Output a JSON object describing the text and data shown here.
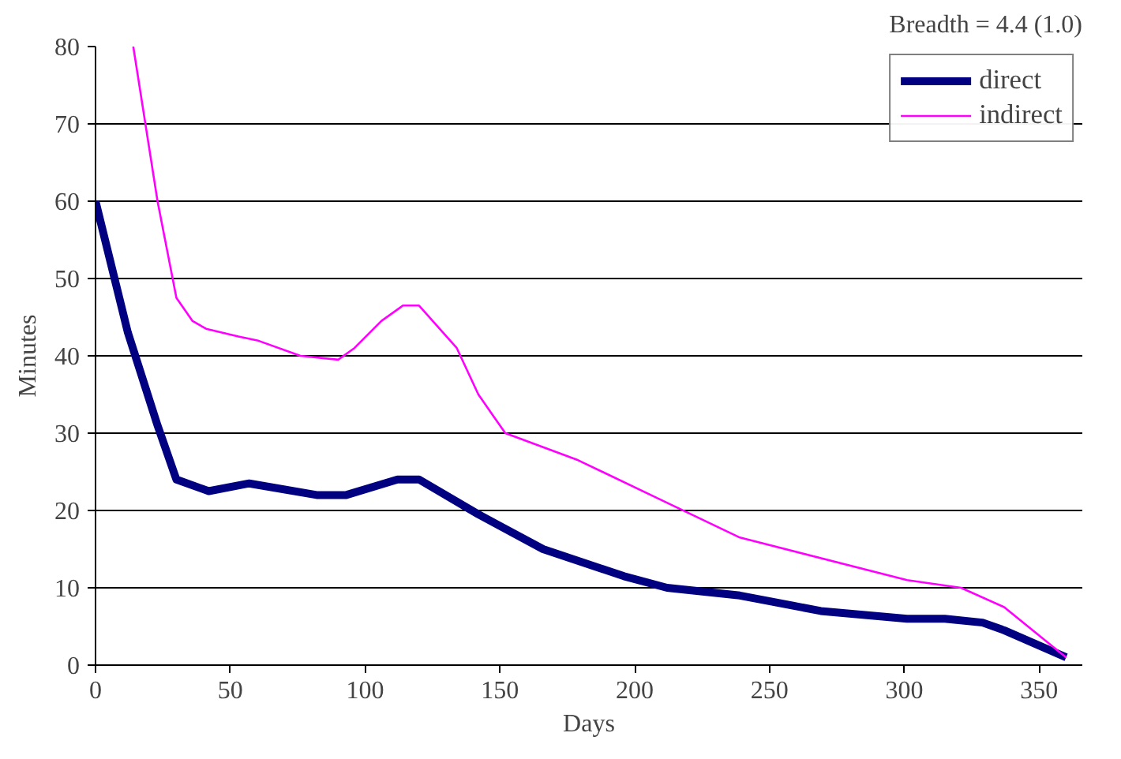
{
  "chart_data": {
    "type": "line",
    "xlabel": "Days",
    "ylabel": "Minutes",
    "annotations": [
      "Breadth = 4.4 (1.0)"
    ],
    "xlim": [
      0,
      366
    ],
    "ylim": [
      0,
      80
    ],
    "xticks": [
      0,
      50,
      100,
      150,
      200,
      250,
      300,
      350
    ],
    "yticks": [
      0,
      10,
      20,
      30,
      40,
      50,
      60,
      70,
      80
    ],
    "grid": "y",
    "legend": "top right",
    "marker": "none",
    "line_style": "solid",
    "series": [
      {
        "name": "direct",
        "color": "#000080",
        "x": [
          0,
          12,
          23,
          30,
          42,
          57,
          82,
          93,
          112,
          120,
          142,
          150,
          166,
          196,
          212,
          239,
          269,
          301,
          315,
          329,
          337,
          360
        ],
        "values": [
          60,
          43,
          31,
          24,
          22.5,
          23.5,
          22,
          22,
          24,
          24,
          19.5,
          18,
          15,
          11.5,
          10,
          9,
          7,
          6,
          6,
          5.5,
          4.5,
          1
        ]
      },
      {
        "name": "indirect",
        "color": "#ff00ff",
        "x": [
          14,
          23,
          30,
          36,
          41,
          53,
          60,
          76,
          90,
          96,
          106,
          114,
          120,
          134,
          142,
          148,
          152,
          179,
          209,
          239,
          301,
          321,
          337,
          360
        ],
        "values": [
          80,
          60,
          47.5,
          44.5,
          43.5,
          42.5,
          42,
          40,
          39.5,
          41,
          44.5,
          46.5,
          46.5,
          41,
          35,
          32,
          30,
          26.5,
          21.5,
          16.5,
          11,
          10,
          7.5,
          1
        ]
      }
    ]
  }
}
